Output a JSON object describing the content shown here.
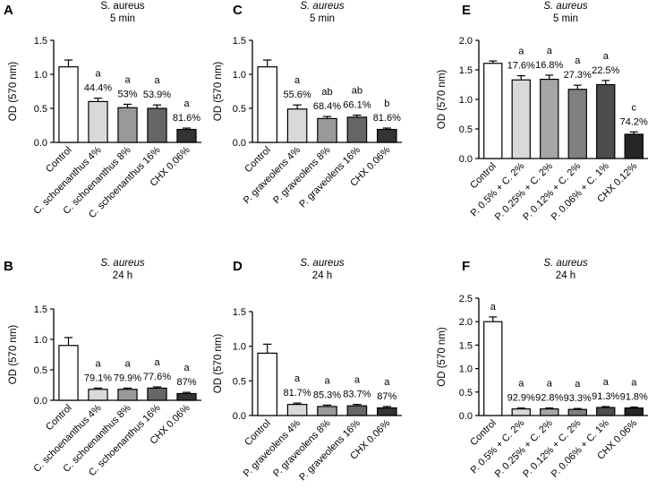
{
  "chart_data": [
    {
      "id": "A",
      "type": "bar",
      "letter": "A",
      "title": [
        "S. aureus",
        "5 min"
      ],
      "title_italic": false,
      "ylabel": "OD (570 nm)",
      "ylim": [
        0,
        1.5
      ],
      "yticks": [
        "0.0",
        "0.5",
        "1.0",
        "1.5"
      ],
      "categories": [
        "Control",
        "C. schoenanthus 4%",
        "C. schoenanthus 8%",
        "C. schoenanthus 16%",
        "CHX 0.06%"
      ],
      "values": [
        1.11,
        0.6,
        0.51,
        0.5,
        0.19
      ],
      "errors": [
        0.1,
        0.05,
        0.05,
        0.05,
        0.02
      ],
      "fills": [
        "#ffffff",
        "#d9d9d9",
        "#999999",
        "#666666",
        "#333333"
      ],
      "letters": [
        "",
        "a",
        "a",
        "a",
        "a"
      ],
      "percents": [
        "",
        "44.4%",
        "53%",
        "53.9%",
        "81.6%"
      ]
    },
    {
      "id": "B",
      "type": "bar",
      "letter": "B",
      "title": [
        "S. aureus",
        "24 h"
      ],
      "title_italic": true,
      "ylabel": "OD (570 nm)",
      "ylim": [
        0,
        1.5
      ],
      "yticks": [
        "0.0",
        "0.5",
        "1.0",
        "1.5"
      ],
      "categories": [
        "Control",
        "C. schoenanthus 4%",
        "C. schoenanthus 8%",
        "C. schoenanthus 16%",
        "CHX 0.06%"
      ],
      "values": [
        0.9,
        0.18,
        0.18,
        0.2,
        0.11
      ],
      "errors": [
        0.13,
        0.02,
        0.02,
        0.02,
        0.02
      ],
      "fills": [
        "#ffffff",
        "#d9d9d9",
        "#999999",
        "#666666",
        "#333333"
      ],
      "letters": [
        "",
        "a",
        "a",
        "a",
        "a"
      ],
      "percents": [
        "",
        "79.1%",
        "79.9%",
        "77.6%",
        "87%"
      ]
    },
    {
      "id": "C",
      "type": "bar",
      "letter": "C",
      "title": [
        "S. aureus",
        "5 min"
      ],
      "title_italic": true,
      "ylabel": "OD (570 nm)",
      "ylim": [
        0,
        1.5
      ],
      "yticks": [
        "0.0",
        "0.5",
        "1.0",
        "1.5"
      ],
      "categories": [
        "Control",
        "P. graveolens 4%",
        "P. graveolens 8%",
        "P. graveolens 16%",
        "CHX 0.06%"
      ],
      "values": [
        1.11,
        0.49,
        0.35,
        0.37,
        0.19
      ],
      "errors": [
        0.1,
        0.06,
        0.03,
        0.03,
        0.02
      ],
      "fills": [
        "#ffffff",
        "#d9d9d9",
        "#999999",
        "#666666",
        "#333333"
      ],
      "letters": [
        "",
        "a",
        "ab",
        "ab",
        "b"
      ],
      "percents": [
        "",
        "55.6%",
        "68.4%",
        "66.1%",
        "81.6%"
      ]
    },
    {
      "id": "D",
      "type": "bar",
      "letter": "D",
      "title": [
        "S. aureus",
        "24 h"
      ],
      "title_italic": true,
      "ylabel": "OD (570 nm)",
      "ylim": [
        0,
        1.5
      ],
      "yticks": [
        "0.0",
        "0.5",
        "1.0",
        "1.5"
      ],
      "categories": [
        "Control",
        "P. graveolens 4%",
        "P. graveolens 8%",
        "P. graveolens 16%",
        "CHX 0.06%"
      ],
      "values": [
        0.9,
        0.16,
        0.13,
        0.14,
        0.11
      ],
      "errors": [
        0.13,
        0.02,
        0.02,
        0.02,
        0.02
      ],
      "fills": [
        "#ffffff",
        "#d9d9d9",
        "#999999",
        "#666666",
        "#333333"
      ],
      "letters": [
        "",
        "a",
        "a",
        "a",
        "a"
      ],
      "percents": [
        "",
        "81.7%",
        "85.3%",
        "83.7%",
        "87%"
      ]
    },
    {
      "id": "E",
      "type": "bar",
      "letter": "E",
      "title": [
        "S. aureus",
        "5 min"
      ],
      "title_italic": true,
      "ylabel": "OD (570 nm)",
      "ylim": [
        0,
        2.0
      ],
      "yticks": [
        "0.0",
        "0.5",
        "1.0",
        "1.5",
        "2.0"
      ],
      "categories": [
        "Control",
        "P. 0.5% + C. 2%",
        "P. 0.25% + C. 2%",
        "P. 0.12% + C. 2%",
        "P. 0.06% + C. 1%",
        "CHX 0.12%"
      ],
      "values": [
        1.61,
        1.33,
        1.34,
        1.17,
        1.25,
        0.41
      ],
      "errors": [
        0.04,
        0.07,
        0.07,
        0.07,
        0.07,
        0.04
      ],
      "fills": [
        "#ffffff",
        "#d9d9d9",
        "#a6a6a6",
        "#808080",
        "#4d4d4d",
        "#262626"
      ],
      "letters": [
        "",
        "a",
        "a",
        "a",
        "a",
        "c"
      ],
      "percents": [
        "",
        "17.6%",
        "16.8%",
        "27.3%",
        "22.5%",
        "74.2%"
      ]
    },
    {
      "id": "F",
      "type": "bar",
      "letter": "F",
      "title": [
        "S. aureus",
        "24 h"
      ],
      "title_italic": true,
      "ylabel": "OD (570 nm)",
      "ylim": [
        0,
        2.5
      ],
      "yticks": [
        "0.0",
        "0.5",
        "1.0",
        "1.5",
        "2.0",
        "2.5"
      ],
      "categories": [
        "Control",
        "P. 0.5% + C. 2%",
        "P. 0.25% + C. 2%",
        "P. 0.12% + C. 2%",
        "P. 0.06% + C. 1%",
        "CHX 0.06%"
      ],
      "values": [
        2.0,
        0.14,
        0.14,
        0.13,
        0.17,
        0.16
      ],
      "errors": [
        0.1,
        0.02,
        0.02,
        0.02,
        0.02,
        0.02
      ],
      "fills": [
        "#ffffff",
        "#d9d9d9",
        "#a6a6a6",
        "#808080",
        "#4d4d4d",
        "#262626"
      ],
      "letters": [
        "a",
        "a",
        "a",
        "a",
        "a",
        "a"
      ],
      "percents": [
        "",
        "92.9%",
        "92.8%",
        "93.3%",
        "91.3%",
        "91.8%"
      ]
    }
  ]
}
